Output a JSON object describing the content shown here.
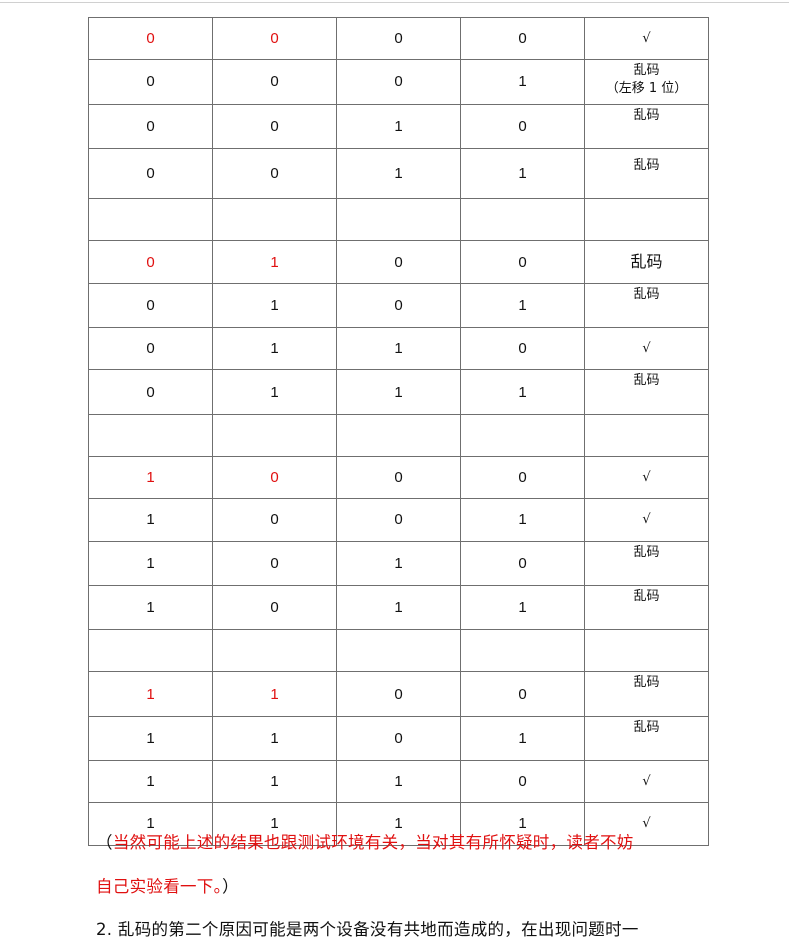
{
  "table": {
    "rows": [
      {
        "cells": [
          "0",
          "0",
          "0",
          "0"
        ],
        "highlight": true,
        "result": "√"
      },
      {
        "cells": [
          "0",
          "0",
          "0",
          "1"
        ],
        "highlight": false,
        "result": "乱码",
        "note": "（左移 1 位）"
      },
      {
        "cells": [
          "0",
          "0",
          "1",
          "0"
        ],
        "highlight": false,
        "result": "乱码"
      },
      {
        "cells": [
          "0",
          "0",
          "1",
          "1"
        ],
        "highlight": false,
        "result": "乱码"
      },
      {
        "cells": [
          "",
          "",
          "",
          "",
          ""
        ],
        "blank": true
      },
      {
        "cells": [
          "0",
          "1",
          "0",
          "0"
        ],
        "highlight": true,
        "result": "乱码"
      },
      {
        "cells": [
          "0",
          "1",
          "0",
          "1"
        ],
        "highlight": false,
        "result": "乱码"
      },
      {
        "cells": [
          "0",
          "1",
          "1",
          "0"
        ],
        "highlight": false,
        "result": "√"
      },
      {
        "cells": [
          "0",
          "1",
          "1",
          "1"
        ],
        "highlight": false,
        "result": "乱码"
      },
      {
        "cells": [
          "",
          "",
          "",
          "",
          ""
        ],
        "blank": true
      },
      {
        "cells": [
          "1",
          "0",
          "0",
          "0"
        ],
        "highlight": true,
        "result": "√"
      },
      {
        "cells": [
          "1",
          "0",
          "0",
          "1"
        ],
        "highlight": false,
        "result": "√"
      },
      {
        "cells": [
          "1",
          "0",
          "1",
          "0"
        ],
        "highlight": false,
        "result": "乱码"
      },
      {
        "cells": [
          "1",
          "0",
          "1",
          "1"
        ],
        "highlight": false,
        "result": "乱码"
      },
      {
        "cells": [
          "",
          "",
          "",
          "",
          ""
        ],
        "blank": true
      },
      {
        "cells": [
          "1",
          "1",
          "0",
          "0"
        ],
        "highlight": true,
        "result": "乱码"
      },
      {
        "cells": [
          "1",
          "1",
          "0",
          "1"
        ],
        "highlight": false,
        "result": "乱码"
      },
      {
        "cells": [
          "1",
          "1",
          "1",
          "0"
        ],
        "highlight": false,
        "result": "√"
      },
      {
        "cells": [
          "1",
          "1",
          "1",
          "1"
        ],
        "highlight": false,
        "result": "√"
      }
    ]
  },
  "note": {
    "open_paren": "（",
    "line1": "当然可能上述的结果也跟测试环境有关，当对其有所怀疑时，读者不妨",
    "line2": "自己实验看一下。",
    "close_paren": "）"
  },
  "paragraph": {
    "number": "2.",
    "text": "乱码的第二个原因可能是两个设备没有共地而造成的，在出现问题时一"
  },
  "colors": {
    "highlight": "#e01010",
    "border": "#6f6f6f"
  }
}
